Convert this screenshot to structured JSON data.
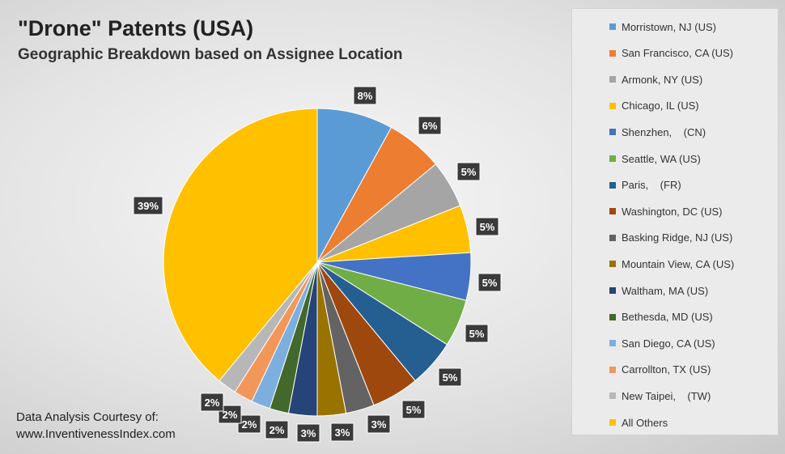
{
  "chart_data": {
    "type": "pie",
    "title": "\"Drone\" Patents (USA)",
    "subtitle": "Geographic Breakdown based on Assignee Location",
    "legend_position": "right",
    "slices": [
      {
        "label": "Morristown, NJ (US)",
        "value": 8,
        "display": "8%",
        "color": "#5b9bd5"
      },
      {
        "label": "San Francisco, CA (US)",
        "value": 6,
        "display": "6%",
        "color": "#ed7d31"
      },
      {
        "label": "Armonk, NY (US)",
        "value": 5,
        "display": "5%",
        "color": "#a5a5a5"
      },
      {
        "label": "Chicago, IL (US)",
        "value": 5,
        "display": "5%",
        "color": "#ffc000"
      },
      {
        "label": "Shenzhen,    (CN)",
        "value": 5,
        "display": "5%",
        "color": "#4472c4"
      },
      {
        "label": "Seattle, WA (US)",
        "value": 5,
        "display": "5%",
        "color": "#70ad47"
      },
      {
        "label": "Paris,    (FR)",
        "value": 5,
        "display": "5%",
        "color": "#255e91"
      },
      {
        "label": "Washington, DC (US)",
        "value": 5,
        "display": "5%",
        "color": "#9e480e"
      },
      {
        "label": "Basking Ridge, NJ (US)",
        "value": 3,
        "display": "3%",
        "color": "#636363"
      },
      {
        "label": "Mountain View, CA (US)",
        "value": 3,
        "display": "3%",
        "color": "#997300"
      },
      {
        "label": "Waltham, MA (US)",
        "value": 3,
        "display": "3%",
        "color": "#264478"
      },
      {
        "label": "Bethesda, MD (US)",
        "value": 2,
        "display": "2%",
        "color": "#43682b"
      },
      {
        "label": "San Diego, CA (US)",
        "value": 2,
        "display": "2%",
        "color": "#7cafdd"
      },
      {
        "label": "Carrollton, TX (US)",
        "value": 2,
        "display": "2%",
        "color": "#f1975a"
      },
      {
        "label": "New Taipei,    (TW)",
        "value": 2,
        "display": "2%",
        "color": "#b7b7b7"
      },
      {
        "label": "All Others",
        "value": 39,
        "display": "39%",
        "color": "#ffc000"
      }
    ]
  },
  "credit": {
    "line1": "Data Analysis Courtesy of:",
    "line2": "www.InventivenessIndex.com"
  }
}
